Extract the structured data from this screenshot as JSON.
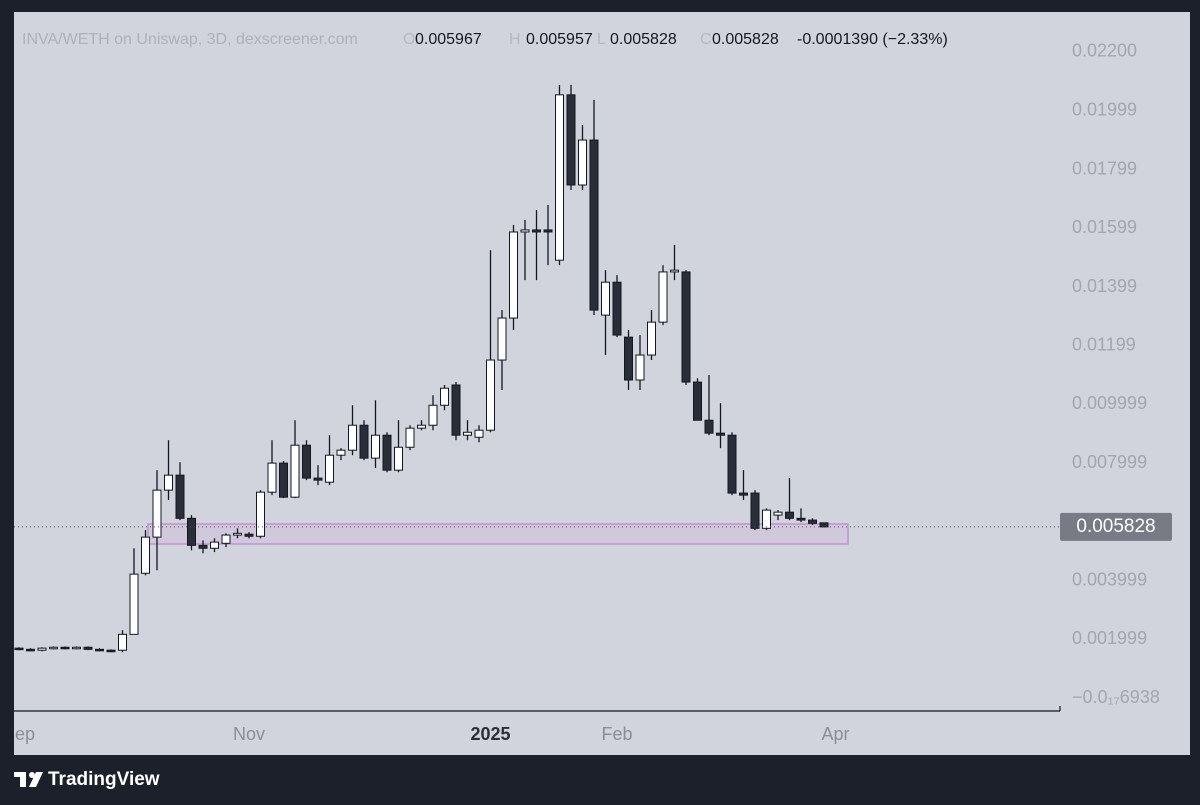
{
  "chart_data": {
    "type": "candlestick",
    "title": "INVA/WETH on Uniswap, 3D, dexscreener.com",
    "ohlc_labels": [
      "O",
      "H",
      "L",
      "C"
    ],
    "ohlc_values": [
      0.005967,
      0.005957,
      0.005828,
      0.005828
    ],
    "change": "-0.0001390 (−2.33%)",
    "last_price": 0.005828,
    "footer": "TradingView",
    "up_color": "#ffffff",
    "down_color": "#2a2e39",
    "ylim": [
      -0.00044,
      0.02336
    ],
    "yticks": [
      {
        "value": 0.022,
        "label": "0.02200"
      },
      0.01999,
      0.01799,
      0.01599,
      0.01399,
      0.01199,
      0.009999,
      0.007999,
      0.003999,
      0.001999,
      {
        "value": -6.938e-21,
        "label": "−0.0₁₇6938"
      }
    ],
    "categories": [
      "Sep",
      null,
      null,
      null,
      null,
      null,
      null,
      null,
      null,
      null,
      null,
      null,
      null,
      null,
      null,
      null,
      null,
      null,
      null,
      null,
      "Nov",
      null,
      null,
      null,
      null,
      null,
      null,
      null,
      null,
      null,
      null,
      null,
      null,
      null,
      null,
      null,
      null,
      null,
      null,
      null,
      null,
      "2025",
      null,
      null,
      null,
      null,
      null,
      null,
      null,
      null,
      null,
      null,
      "Feb",
      null,
      null,
      null,
      null,
      null,
      null,
      null,
      null,
      null,
      null,
      null,
      null,
      null,
      null,
      null,
      null,
      null,
      null,
      "Apr"
    ],
    "open": [
      0.0017,
      0.00166,
      0.00163,
      0.0017,
      0.00173,
      0.0017,
      0.00173,
      0.00166,
      0.00163,
      0.00163,
      0.00217,
      0.00425,
      0.00548,
      0.00708,
      0.00759,
      0.00612,
      0.0052,
      0.0051,
      0.00527,
      0.00555,
      0.00558,
      0.00551,
      0.00701,
      0.008,
      0.00684,
      0.00861,
      0.00749,
      0.00735,
      0.00827,
      0.00844,
      0.00929,
      0.00817,
      0.00895,
      0.00776,
      0.00854,
      0.00919,
      0.00929,
      0.00997,
      0.01066,
      0.00895,
      0.00888,
      0.00912,
      0.01151,
      0.01294,
      0.01587,
      0.01594,
      0.01594,
      0.01491,
      0.02054,
      0.01747,
      0.019,
      0.01304,
      0.01416,
      0.01229,
      0.01083,
      0.01168,
      0.0128,
      0.01451,
      0.01451,
      0.01076,
      0.00946,
      0.00902,
      0.00895,
      0.00698,
      0.00698,
      0.00578,
      0.00623,
      0.00633,
      0.00612,
      0.00606,
      0.005967,
      null
    ],
    "high": [
      0.00173,
      0.0017,
      0.00173,
      0.00176,
      0.00176,
      0.00176,
      0.00176,
      0.0017,
      0.00166,
      0.00231,
      0.0051,
      0.00572,
      0.00776,
      0.00878,
      0.00803,
      0.00623,
      0.00537,
      0.00544,
      0.00561,
      0.00578,
      0.00565,
      0.00708,
      0.00878,
      0.00807,
      0.00946,
      0.00878,
      0.00793,
      0.00895,
      0.00851,
      0.00997,
      0.00946,
      0.01014,
      0.00905,
      0.00946,
      0.00929,
      0.00946,
      0.01031,
      0.01066,
      0.01076,
      0.00946,
      0.00929,
      0.01525,
      0.01321,
      0.01611,
      0.01628,
      0.01662,
      0.01679,
      0.02088,
      0.02088,
      0.01951,
      0.02037,
      0.01457,
      0.0144,
      0.01253,
      0.01236,
      0.01321,
      0.01474,
      0.01543,
      0.01457,
      0.01089,
      0.011,
      0.01004,
      0.00905,
      0.00776,
      0.00708,
      0.00646,
      0.0064,
      0.00749,
      0.00646,
      0.00612,
      0.005957,
      null
    ],
    "low": [
      0.00163,
      0.00159,
      0.00159,
      0.00166,
      0.00166,
      0.00166,
      0.00163,
      0.00159,
      0.00156,
      0.00156,
      0.00217,
      0.00418,
      0.00435,
      0.00674,
      0.00606,
      0.00503,
      0.00493,
      0.00497,
      0.00514,
      0.00544,
      0.00544,
      0.00544,
      0.00691,
      0.00681,
      0.00681,
      0.00742,
      0.00725,
      0.00725,
      0.0081,
      0.00827,
      0.0081,
      0.00783,
      0.00769,
      0.00769,
      0.00844,
      0.00912,
      0.00912,
      0.0098,
      0.00878,
      0.00878,
      0.00871,
      0.00905,
      0.01049,
      0.01253,
      0.01423,
      0.01423,
      0.01474,
      0.01474,
      0.0173,
      0.0173,
      0.01304,
      0.01168,
      0.01229,
      0.01049,
      0.01049,
      0.01151,
      0.0127,
      0.01423,
      0.01066,
      0.00946,
      0.00895,
      0.00851,
      0.00691,
      0.00674,
      0.00572,
      0.00572,
      0.00606,
      0.00606,
      0.00599,
      0.00589,
      0.005828,
      null
    ],
    "close": [
      0.00166,
      0.00163,
      0.0017,
      0.00173,
      0.0017,
      0.00173,
      0.00166,
      0.00163,
      0.00159,
      0.00217,
      0.00422,
      0.00548,
      0.00708,
      0.00759,
      0.00612,
      0.0052,
      0.0051,
      0.00531,
      0.00555,
      0.00561,
      0.00551,
      0.00701,
      0.008,
      0.00684,
      0.00861,
      0.00749,
      0.00742,
      0.00827,
      0.00844,
      0.00929,
      0.00817,
      0.00895,
      0.00776,
      0.00854,
      0.00919,
      0.00929,
      0.00997,
      0.01055,
      0.00895,
      0.00905,
      0.00912,
      0.01151,
      0.01294,
      0.01587,
      0.01594,
      0.01587,
      0.01587,
      0.02054,
      0.01747,
      0.019,
      0.01321,
      0.01416,
      0.01236,
      0.01083,
      0.01168,
      0.0128,
      0.01451,
      0.01457,
      0.01076,
      0.00946,
      0.00902,
      0.00895,
      0.00698,
      0.00691,
      0.00578,
      0.0064,
      0.00633,
      0.00612,
      0.00606,
      0.00595,
      0.005828,
      null
    ]
  }
}
